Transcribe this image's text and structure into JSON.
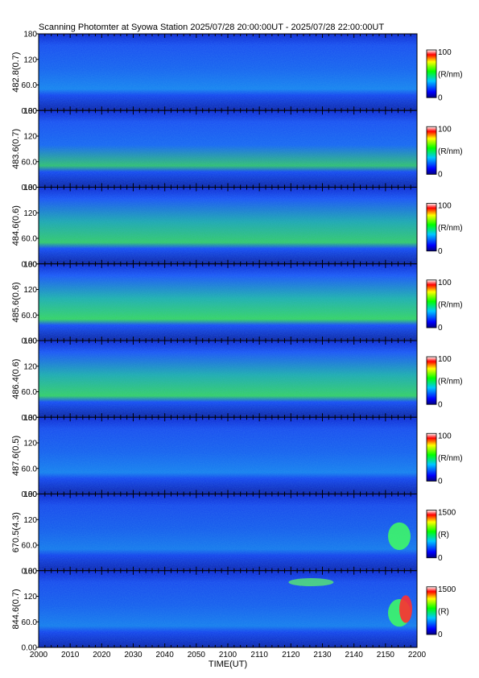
{
  "chart_data": {
    "type": "heatmap",
    "title": "Scanning Photomter at Syowa Station 2025/07/28 20:00:00UT - 2025/07/28 22:00:00UT",
    "xlabel": "TIME(UT)",
    "x_ticks": [
      "2000",
      "2010",
      "2020",
      "2030",
      "2040",
      "2050",
      "2100",
      "2110",
      "2120",
      "2130",
      "2140",
      "2150",
      "2200"
    ],
    "y_ticks": [
      "0.00",
      "60.0",
      "120",
      "180"
    ],
    "ylim": [
      0,
      180
    ],
    "colorscale": [
      "#000080",
      "#0000ff",
      "#00ffff",
      "#00ff00",
      "#ffff00",
      "#ff0000",
      "#ffffff"
    ],
    "panels": [
      {
        "ylabel": "482.8(0.7)",
        "cb_max": "100",
        "cb_min": "0",
        "cb_unit": "(R/nm)",
        "intensity": 0.35,
        "band": 0.25
      },
      {
        "ylabel": "483.6(0.7)",
        "cb_max": "100",
        "cb_min": "0",
        "cb_unit": "(R/nm)",
        "intensity": 0.45,
        "band": 0.3
      },
      {
        "ylabel": "484.6(0.6)",
        "cb_max": "100",
        "cb_min": "0",
        "cb_unit": "(R/nm)",
        "intensity": 0.55,
        "band": 0.3
      },
      {
        "ylabel": "485.6(0.6)",
        "cb_max": "100",
        "cb_min": "0",
        "cb_unit": "(R/nm)",
        "intensity": 0.65,
        "band": 0.3
      },
      {
        "ylabel": "486.4(0.6)",
        "cb_max": "100",
        "cb_min": "0",
        "cb_unit": "(R/nm)",
        "intensity": 0.6,
        "band": 0.28
      },
      {
        "ylabel": "487.6(0.5)",
        "cb_max": "100",
        "cb_min": "0",
        "cb_unit": "(R/nm)",
        "intensity": 0.3,
        "band": 0.25
      },
      {
        "ylabel": "670.5(4.3)",
        "cb_max": "1500",
        "cb_min": "0",
        "cb_unit": "(R)",
        "intensity": 0.2,
        "band": 0.2
      },
      {
        "ylabel": "844.6(0.7)",
        "cb_max": "1500",
        "cb_min": "0",
        "cb_unit": "(R)",
        "intensity": 0.25,
        "band": 0.2
      }
    ]
  }
}
